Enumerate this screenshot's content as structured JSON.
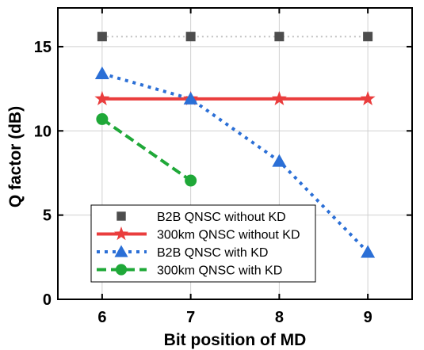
{
  "chart_data": {
    "type": "line",
    "title": "",
    "xlabel": "Bit position of MD",
    "ylabel": "Q factor (dB)",
    "x": [
      6,
      7,
      8,
      9
    ],
    "xlim": [
      5.5,
      9.5
    ],
    "ylim": [
      0,
      17.3
    ],
    "xticks": [
      "6",
      "7",
      "8",
      "9"
    ],
    "yticks": [
      "0",
      "5",
      "10",
      "15"
    ],
    "grid": true,
    "legend_position": "bottom-left",
    "series": [
      {
        "name": "B2B QNSC without KD",
        "x": [
          6,
          7,
          8,
          9
        ],
        "values": [
          15.6,
          15.6,
          15.6,
          15.6
        ],
        "color": "#4d4d4d",
        "marker": "square",
        "line": "dotted-light"
      },
      {
        "name": "300km QNSC without KD",
        "x": [
          6,
          7,
          8,
          9
        ],
        "values": [
          11.9,
          11.9,
          11.9,
          11.9
        ],
        "color": "#ea3d3d",
        "marker": "star",
        "line": "solid"
      },
      {
        "name": "B2B QNSC with KD",
        "x": [
          6,
          7,
          8,
          9
        ],
        "values": [
          13.4,
          11.9,
          8.2,
          2.8
        ],
        "color": "#2b6fd6",
        "marker": "triangle",
        "line": "dotted"
      },
      {
        "name": "300km QNSC with KD",
        "x": [
          6,
          7
        ],
        "values": [
          10.7,
          7.05
        ],
        "color": "#1fa838",
        "marker": "circle",
        "line": "dashed"
      }
    ]
  }
}
